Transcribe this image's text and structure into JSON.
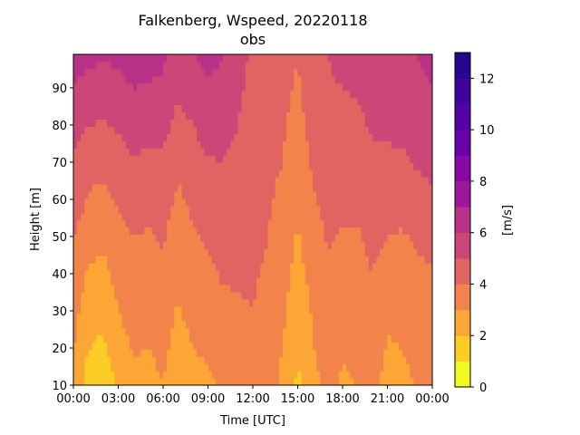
{
  "chart_data": {
    "type": "heatmap",
    "title": "Falkenberg, Wspeed, 20220118",
    "subtitle": "obs",
    "xlabel": "Time [UTC]",
    "ylabel": "Height [m]",
    "colorbar_label": "[m/s]",
    "xlim": [
      "00:00",
      "24:00"
    ],
    "ylim": [
      10,
      99
    ],
    "x_ticks": [
      "00:00",
      "03:00",
      "06:00",
      "09:00",
      "12:00",
      "15:00",
      "18:00",
      "21:00",
      "00:00"
    ],
    "y_ticks": [
      10,
      20,
      30,
      40,
      50,
      60,
      70,
      80,
      90
    ],
    "colorbar": {
      "levels": [
        0,
        1,
        2,
        3,
        4,
        5,
        6,
        7,
        8,
        9,
        10,
        11,
        12,
        13
      ],
      "tick_labels": [
        0,
        2,
        4,
        6,
        8,
        10,
        12
      ],
      "colors": [
        "#f0f921",
        "#fccd25",
        "#fca636",
        "#f2844b",
        "#e16462",
        "#cc4778",
        "#b83289",
        "#9c179e",
        "#8a09a5",
        "#6a00a8",
        "#5302a3",
        "#3e049c",
        "#240691"
      ]
    },
    "heights": [
      10,
      20,
      30,
      40,
      50,
      60,
      70,
      80,
      90,
      99
    ],
    "times": [
      "00:00",
      "01:00",
      "02:00",
      "03:00",
      "04:00",
      "05:00",
      "06:00",
      "07:00",
      "08:00",
      "09:00",
      "10:00",
      "11:00",
      "12:00",
      "13:00",
      "14:00",
      "15:00",
      "16:00",
      "17:00",
      "18:00",
      "19:00",
      "20:00",
      "21:00",
      "22:00",
      "23:00",
      "24:00"
    ],
    "wspeed": [
      [
        2.8,
        1.5,
        1.2,
        2.2,
        2.8,
        2.6,
        3.0,
        2.2,
        2.6,
        2.8,
        3.2,
        3.4,
        3.5,
        3.3,
        2.8,
        1.8,
        2.6,
        3.4,
        2.8,
        3.0,
        3.4,
        2.6,
        2.8,
        3.0,
        3.2
      ],
      [
        3.1,
        2.0,
        1.8,
        2.6,
        3.1,
        3.0,
        3.3,
        2.6,
        3.0,
        3.2,
        3.5,
        3.7,
        3.8,
        3.5,
        3.0,
        2.1,
        2.9,
        3.6,
        3.1,
        3.3,
        3.6,
        2.9,
        3.0,
        3.3,
        3.4
      ],
      [
        3.4,
        2.4,
        2.2,
        3.0,
        3.4,
        3.3,
        3.5,
        2.9,
        3.3,
        3.5,
        3.8,
        3.9,
        4.0,
        3.7,
        3.2,
        2.3,
        3.1,
        3.8,
        3.4,
        3.5,
        3.8,
        3.2,
        3.2,
        3.5,
        3.6
      ],
      [
        3.7,
        2.9,
        2.7,
        3.3,
        3.7,
        3.6,
        3.8,
        3.2,
        3.6,
        3.8,
        4.1,
        4.1,
        4.1,
        3.9,
        3.4,
        2.6,
        3.4,
        3.9,
        3.6,
        3.7,
        4.0,
        3.6,
        3.5,
        3.8,
        3.9
      ],
      [
        4.1,
        3.4,
        3.2,
        3.7,
        4.0,
        3.9,
        4.1,
        3.5,
        3.9,
        4.1,
        4.4,
        4.3,
        4.2,
        4.0,
        3.6,
        2.9,
        3.6,
        4.1,
        3.9,
        3.9,
        4.2,
        4.0,
        3.9,
        4.2,
        4.3
      ],
      [
        4.5,
        3.9,
        3.7,
        4.1,
        4.4,
        4.3,
        4.4,
        3.8,
        4.2,
        4.5,
        4.7,
        4.5,
        4.3,
        4.1,
        3.8,
        3.2,
        3.9,
        4.3,
        4.2,
        4.2,
        4.5,
        4.4,
        4.3,
        4.6,
        4.8
      ],
      [
        4.9,
        4.4,
        4.3,
        4.6,
        4.9,
        4.8,
        4.8,
        4.2,
        4.6,
        4.9,
        5.0,
        4.7,
        4.4,
        4.2,
        4.0,
        3.5,
        4.1,
        4.5,
        4.5,
        4.5,
        4.8,
        4.8,
        4.8,
        5.1,
        5.3
      ],
      [
        5.4,
        5.0,
        4.9,
        5.1,
        5.4,
        5.3,
        5.3,
        4.7,
        5.0,
        5.4,
        5.4,
        5.0,
        4.6,
        4.3,
        4.1,
        3.7,
        4.3,
        4.7,
        4.8,
        4.8,
        5.1,
        5.2,
        5.3,
        5.5,
        5.7
      ],
      [
        6.0,
        5.7,
        5.6,
        5.7,
        6.0,
        5.9,
        5.8,
        5.2,
        5.5,
        5.9,
        5.7,
        5.2,
        4.7,
        4.4,
        4.2,
        3.9,
        4.5,
        4.9,
        5.0,
        5.1,
        5.4,
        5.6,
        5.7,
        5.9,
        6.0
      ],
      [
        6.4,
        6.2,
        6.1,
        6.2,
        6.5,
        6.4,
        6.2,
        5.6,
        5.9,
        6.3,
        6.0,
        5.4,
        4.8,
        4.5,
        4.3,
        4.0,
        4.6,
        5.0,
        5.2,
        5.3,
        5.6,
        5.8,
        5.9,
        6.0,
        6.1
      ]
    ]
  }
}
